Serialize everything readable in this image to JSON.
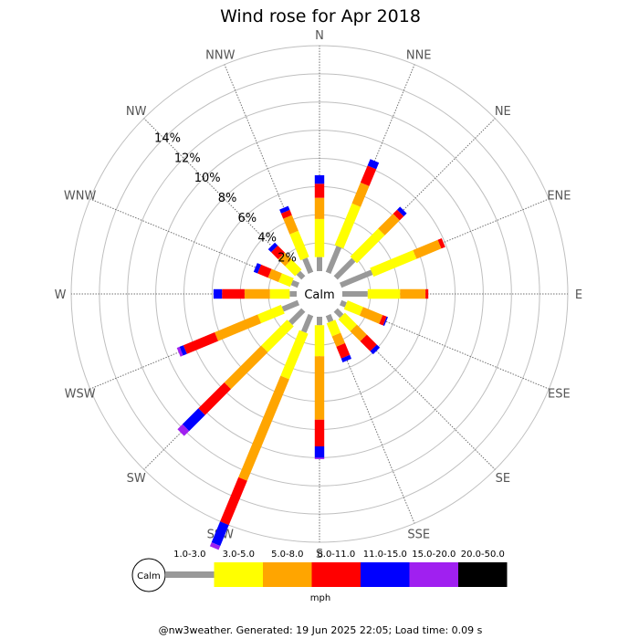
{
  "chart_data": {
    "type": "wind-rose",
    "title": "Wind rose for Apr 2018",
    "unit": "mph",
    "calm_label": "Calm",
    "directions": [
      "N",
      "NNE",
      "NE",
      "ENE",
      "E",
      "ESE",
      "SE",
      "SSE",
      "S",
      "SSW",
      "SW",
      "WSW",
      "W",
      "WNW",
      "NW",
      "NNW"
    ],
    "radial_ticks": [
      2,
      4,
      6,
      8,
      10,
      12,
      14
    ],
    "radial_tick_labels": [
      "2%",
      "4%",
      "6%",
      "8%",
      "10%",
      "12%",
      "14%"
    ],
    "radial_max": 16,
    "bins": [
      {
        "label": "1.0-3.0",
        "color": "#999999"
      },
      {
        "label": "3.0-5.0",
        "color": "#ffff00"
      },
      {
        "label": "5.0-8.0",
        "color": "#ffa500"
      },
      {
        "label": "8.0-11.0",
        "color": "#ff0000"
      },
      {
        "label": "11.0-15.0",
        "color": "#0000ff"
      },
      {
        "label": "15.0-20.0",
        "color": "#a020f0"
      },
      {
        "label": "20.0-50.0",
        "color": "#000000"
      }
    ],
    "series": [
      {
        "direction": "N",
        "values": [
          1.0,
          2.7,
          1.5,
          1.0,
          0.6,
          0.0,
          0.0
        ]
      },
      {
        "direction": "NNE",
        "values": [
          2.0,
          3.2,
          1.6,
          1.3,
          0.5,
          0.0,
          0.0
        ]
      },
      {
        "direction": "NE",
        "values": [
          1.8,
          2.8,
          1.5,
          0.4,
          0.3,
          0.0,
          0.0
        ]
      },
      {
        "direction": "ENE",
        "values": [
          2.4,
          3.3,
          1.9,
          0.3,
          0.0,
          0.0,
          0.0
        ]
      },
      {
        "direction": "E",
        "values": [
          1.8,
          2.3,
          1.8,
          0.2,
          0.0,
          0.0,
          0.0
        ]
      },
      {
        "direction": "ESE",
        "values": [
          0.4,
          1.2,
          1.5,
          0.3,
          0.1,
          0.0,
          0.0
        ]
      },
      {
        "direction": "SE",
        "values": [
          0.6,
          1.2,
          1.0,
          1.0,
          0.3,
          0.0,
          0.0
        ]
      },
      {
        "direction": "SSE",
        "values": [
          0.5,
          1.0,
          0.8,
          0.9,
          0.3,
          0.0,
          0.0
        ]
      },
      {
        "direction": "S",
        "values": [
          0.6,
          2.2,
          4.5,
          1.9,
          0.8,
          0.1,
          0.0
        ]
      },
      {
        "direction": "SSW",
        "values": [
          1.3,
          3.5,
          7.8,
          3.4,
          1.6,
          0.3,
          0.0
        ]
      },
      {
        "direction": "SW",
        "values": [
          1.3,
          2.6,
          3.7,
          2.6,
          1.6,
          0.5,
          0.0
        ]
      },
      {
        "direction": "WSW",
        "values": [
          1.2,
          1.8,
          3.3,
          2.4,
          0.3,
          0.2,
          0.0
        ]
      },
      {
        "direction": "W",
        "values": [
          0.5,
          1.4,
          1.8,
          1.6,
          0.6,
          0.0,
          0.0
        ]
      },
      {
        "direction": "WNW",
        "values": [
          0.5,
          0.9,
          0.8,
          0.8,
          0.3,
          0.0,
          0.0
        ]
      },
      {
        "direction": "NW",
        "values": [
          0.5,
          1.0,
          0.7,
          0.7,
          0.3,
          0.0,
          0.0
        ]
      },
      {
        "direction": "NNW",
        "values": [
          1.1,
          2.0,
          1.2,
          0.4,
          0.3,
          0.0,
          0.0
        ]
      }
    ],
    "legend_placement": "bottom",
    "footer": "@nw3weather. Generated: 19 Jun 2025 22:05; Load time: 0.09 s"
  }
}
